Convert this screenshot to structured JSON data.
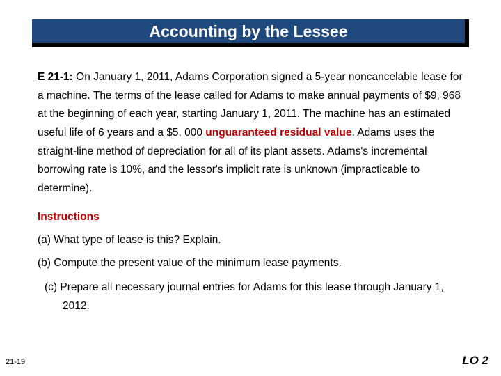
{
  "title": "Accounting by the Lessee",
  "problem": {
    "label": "E 21-1:",
    "text_before_highlight": "On January 1, 2011, Adams Corporation signed a 5-year noncancelable lease for a machine. The terms of the lease called for Adams to make annual payments of $9, 968 at the beginning of each year, starting January 1, 2011. The machine has an estimated useful life of 6 years and a $5, 000 ",
    "highlight": "unguaranteed residual value",
    "text_after_highlight": ". Adams uses the straight-line method of depreciation for all of its plant assets. Adams's incremental borrowing rate is 10%, and the lessor's implicit rate is unknown (impracticable to determine)."
  },
  "instructions_label": "Instructions",
  "instructions": {
    "a": "(a)  What type of lease is this? Explain.",
    "b": "(b)  Compute the present value of the minimum lease payments.",
    "c": "(c)  Prepare all necessary journal entries for Adams for this lease through January 1, 2012."
  },
  "page_number": "21-19",
  "lo": "LO 2",
  "colors": {
    "title_bg": "#1f497d",
    "title_shadow": "#000000",
    "highlight": "#c00000"
  }
}
